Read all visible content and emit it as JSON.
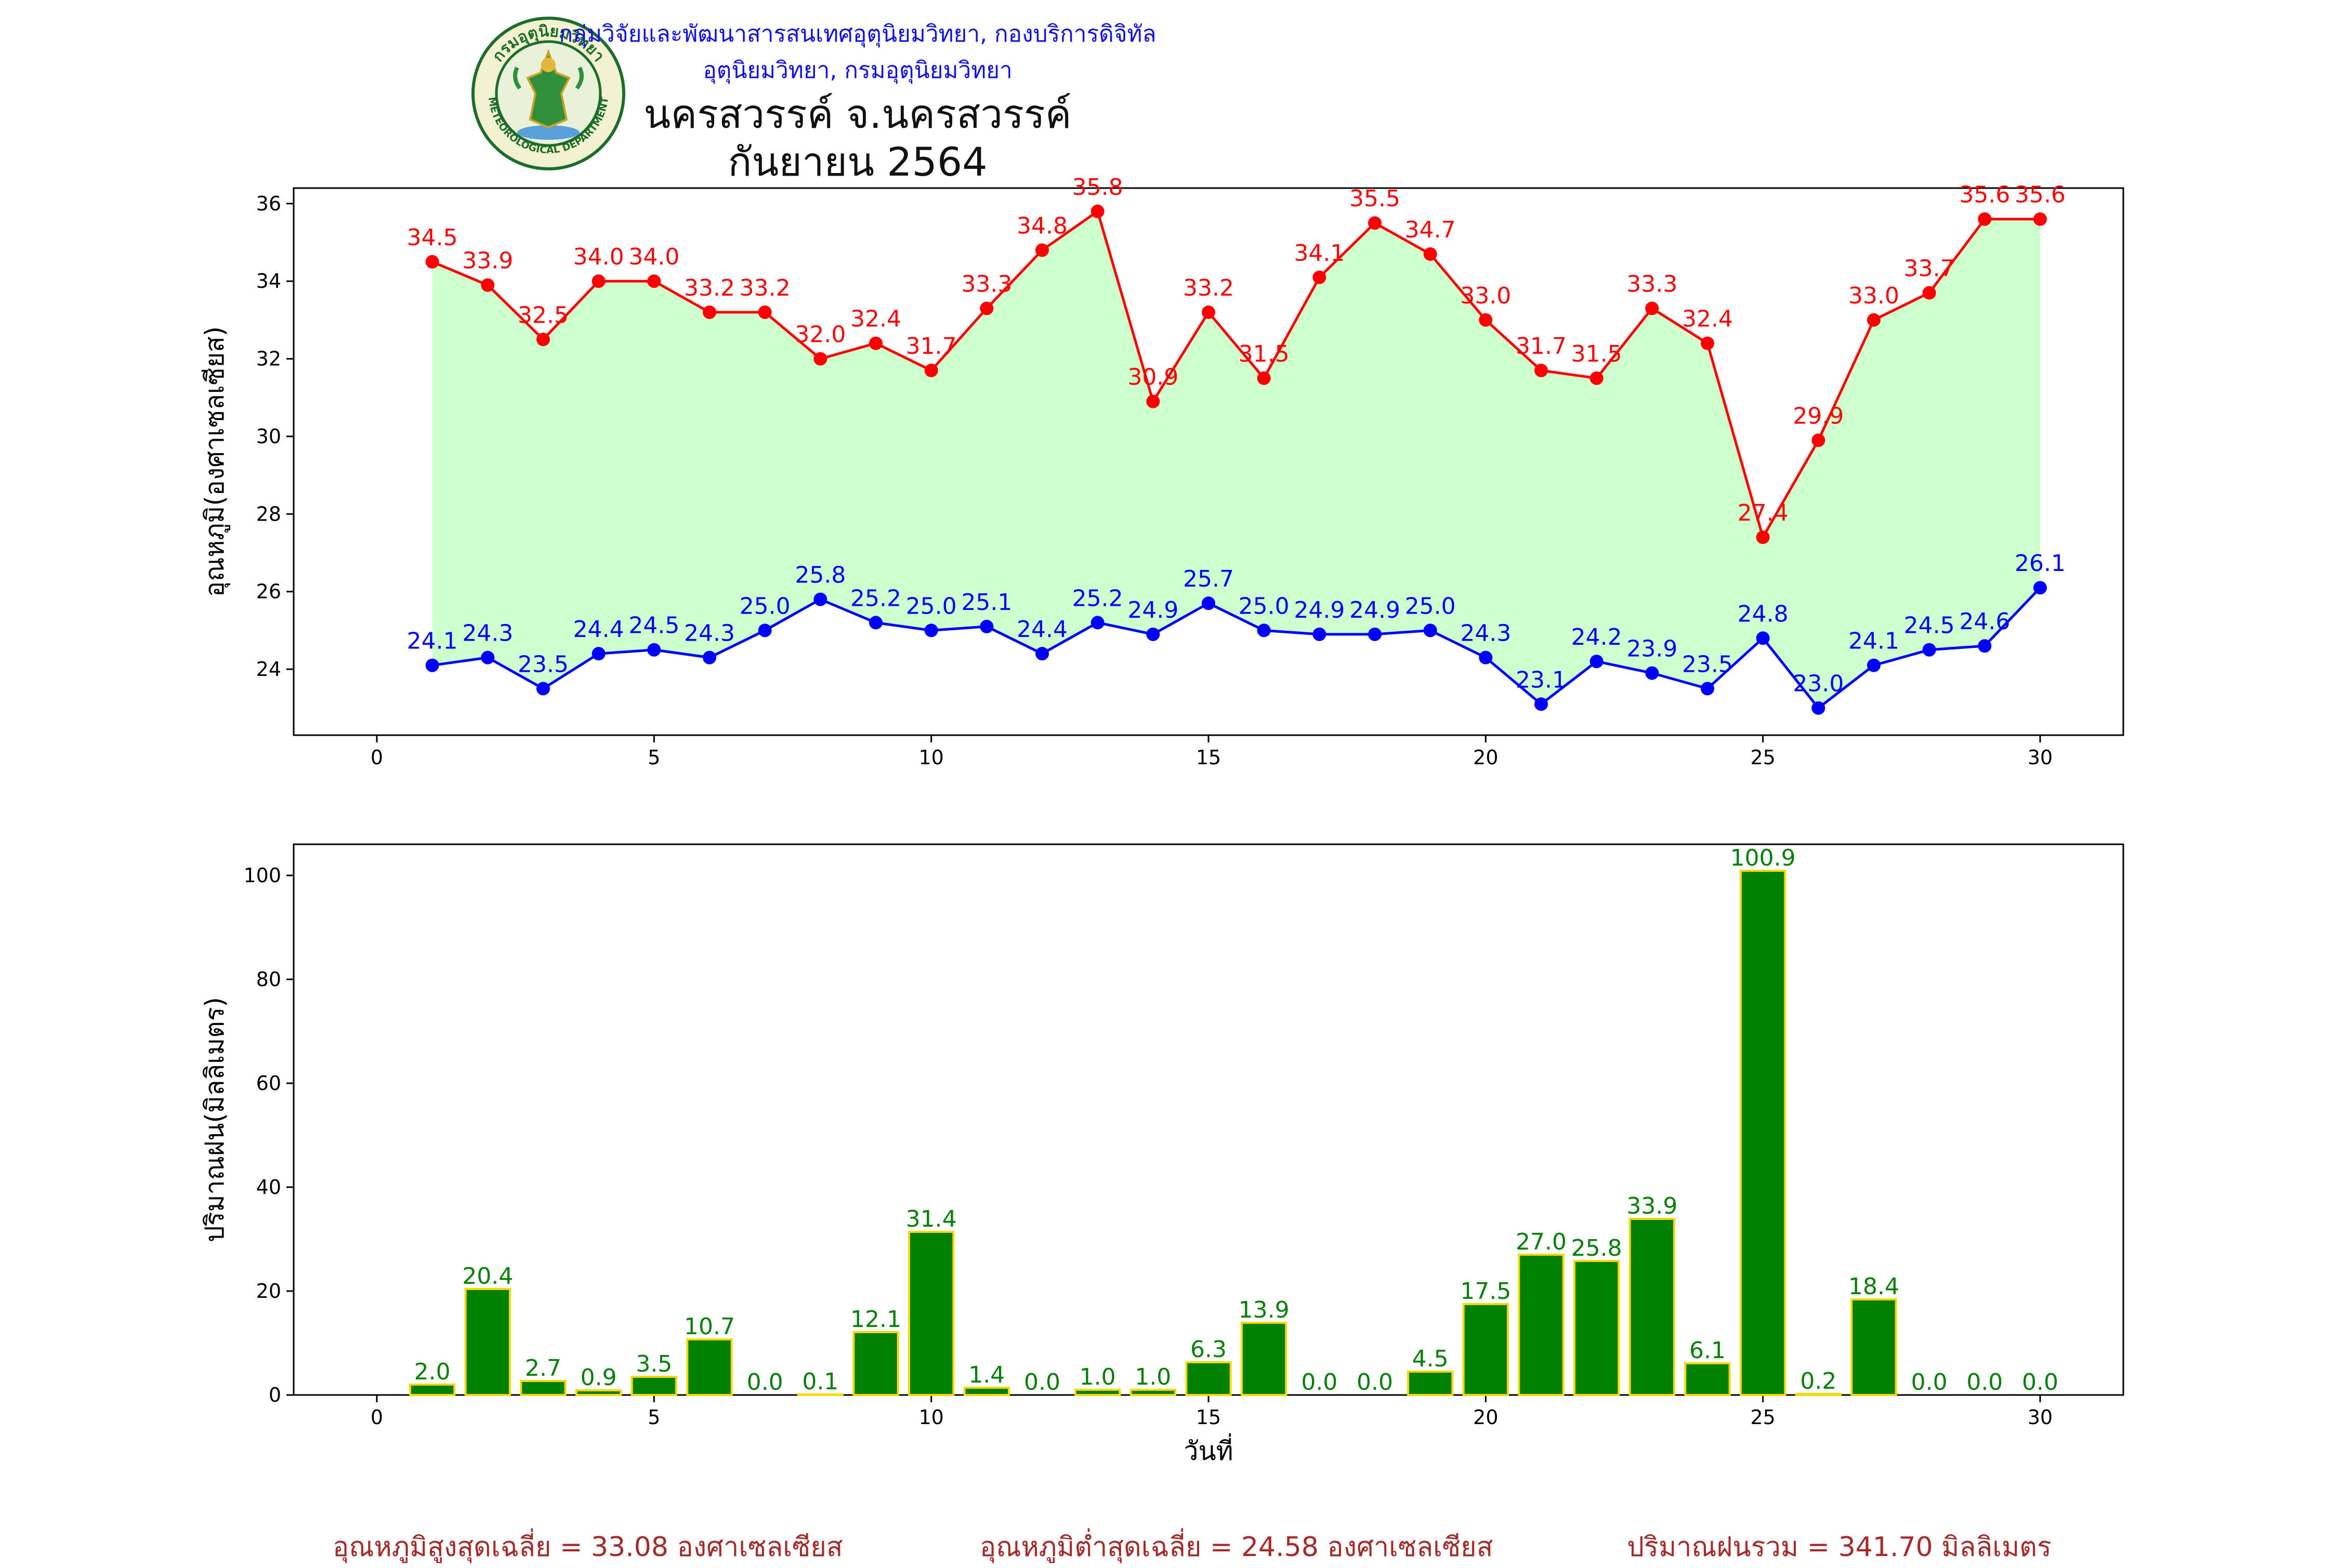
{
  "header": {
    "agency": "กลุ่มวิจัยและพัฒนาสารสนเทศอุตุนิยมวิทยา, กองบริการดิจิทัลอุตุนิยมวิทยา, กรมอุตุนิยมวิทยา",
    "station": "นครสวรรค์  จ.นครสวรรค์",
    "month": "กันยายน 2564",
    "logo_text_top": "กรมอุตุนิยมวิทยา",
    "logo_text_bottom": "METEOROLOGICAL DEPARTMENT"
  },
  "footer": {
    "avg_max": "อุณหภูมิสูงสุดเฉลี่ย = 33.08 องศาเซลเซียส",
    "avg_min": "อุณหภูมิต่ำสุดเฉลี่ย = 24.58 องศาเซลเซียส",
    "total_rain": "ปริมาณฝนรวม = 341.70 มิลลิเมตร"
  },
  "chart_data": [
    {
      "type": "line",
      "ylabel": "อุณหภูมิ(องศาเซลเซียส)",
      "xlim": [
        -1.5,
        31.5
      ],
      "ylim": [
        22.3,
        36.4
      ],
      "xticks": [
        0,
        5,
        10,
        15,
        20,
        25,
        30
      ],
      "yticks": [
        24,
        26,
        28,
        30,
        32,
        34,
        36
      ],
      "fill_between": {
        "color": "#ccffcc"
      },
      "x": [
        1,
        2,
        3,
        4,
        5,
        6,
        7,
        8,
        9,
        10,
        11,
        12,
        13,
        14,
        15,
        16,
        17,
        18,
        19,
        20,
        21,
        22,
        23,
        24,
        25,
        26,
        27,
        28,
        29,
        30
      ],
      "series": [
        {
          "color": "#ff0000",
          "values": [
            34.5,
            33.9,
            32.5,
            34.0,
            34.0,
            33.2,
            33.2,
            32.0,
            32.4,
            31.7,
            33.3,
            34.8,
            35.8,
            30.9,
            33.2,
            31.5,
            34.1,
            35.5,
            34.7,
            33.0,
            31.7,
            31.5,
            33.3,
            32.4,
            27.4,
            29.9,
            33.0,
            33.7,
            35.6,
            35.6
          ]
        },
        {
          "color": "#0000ff",
          "values": [
            24.1,
            24.3,
            23.5,
            24.4,
            24.5,
            24.3,
            25.0,
            25.8,
            25.2,
            25.0,
            25.1,
            24.4,
            25.2,
            24.9,
            25.7,
            25.0,
            24.9,
            24.9,
            25.0,
            24.3,
            23.1,
            24.2,
            23.9,
            23.5,
            24.8,
            23.0,
            24.1,
            24.5,
            24.6,
            26.1
          ]
        }
      ]
    },
    {
      "type": "bar",
      "ylabel": "ปริมาณฝน(มิลลิเมตร)",
      "xlabel": "วันที่",
      "xlim": [
        -1.5,
        31.5
      ],
      "ylim": [
        0,
        106
      ],
      "xticks": [
        0,
        5,
        10,
        15,
        20,
        25,
        30
      ],
      "yticks": [
        0,
        20,
        40,
        60,
        80,
        100
      ],
      "bar_color": "#008000",
      "edge_color": "#ffd700",
      "label_color": "#008000",
      "x": [
        1,
        2,
        3,
        4,
        5,
        6,
        7,
        8,
        9,
        10,
        11,
        12,
        13,
        14,
        15,
        16,
        17,
        18,
        19,
        20,
        21,
        22,
        23,
        24,
        25,
        26,
        27,
        28,
        29,
        30
      ],
      "values": [
        2.0,
        20.4,
        2.7,
        0.9,
        3.5,
        10.7,
        0.0,
        0.1,
        12.1,
        31.4,
        1.4,
        0.0,
        1.0,
        1.0,
        6.3,
        13.9,
        0.0,
        0.0,
        4.5,
        17.5,
        27.0,
        25.8,
        33.9,
        6.1,
        100.9,
        0.2,
        18.4,
        0.0,
        0.0,
        0.0
      ]
    }
  ]
}
